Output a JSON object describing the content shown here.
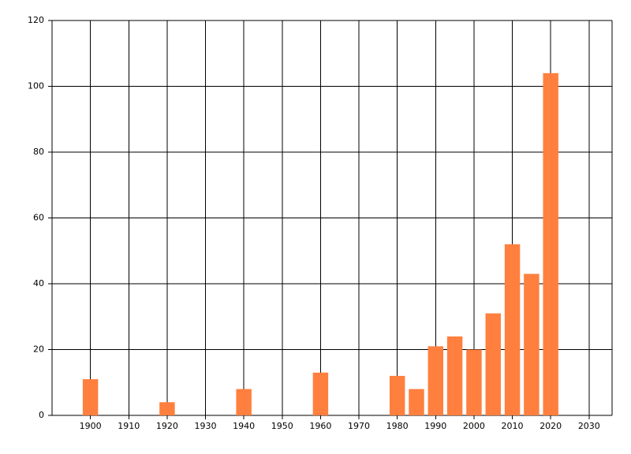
{
  "chart_data": {
    "type": "bar",
    "x": [
      1900,
      1920,
      1940,
      1960,
      1980,
      1985,
      1990,
      1995,
      2000,
      2005,
      2010,
      2015,
      2020
    ],
    "values": [
      11,
      4,
      8,
      13,
      12,
      8,
      21,
      24,
      20,
      31,
      52,
      43,
      104
    ],
    "color": "#ff7f3f",
    "xlim": [
      1890,
      2036
    ],
    "xticks": [
      1900,
      1910,
      1920,
      1930,
      1940,
      1950,
      1960,
      1970,
      1980,
      1990,
      2000,
      2010,
      2020,
      2030
    ],
    "ylim": [
      0,
      120
    ],
    "yticks": [
      0,
      20,
      40,
      60,
      80,
      100,
      120
    ],
    "grid": true
  }
}
